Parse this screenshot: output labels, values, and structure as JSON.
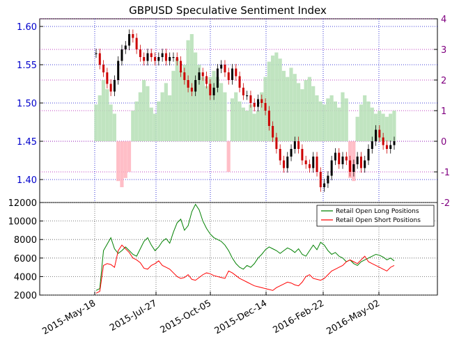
{
  "chart_data": [
    {
      "type": "candlestick+bar",
      "title": "GBPUSD Speculative Sentiment Index",
      "x_tick_labels": [
        "2015-May-18",
        "2015-Jul-27",
        "2015-Oct-05",
        "2015-Dec-14",
        "2016-Feb-22",
        "2016-May-02"
      ],
      "y_left": {
        "ticks": [
          "1.40",
          "1.45",
          "1.50",
          "1.55",
          "1.60"
        ],
        "ylim": [
          1.37,
          1.61
        ]
      },
      "y_right": {
        "ticks": [
          "-2",
          "-1",
          "0",
          "1",
          "2",
          "3",
          "4"
        ],
        "ylim": [
          -2,
          4
        ]
      },
      "grid": true,
      "price_ohlc_approx": [
        1.565,
        1.55,
        1.54,
        1.525,
        1.515,
        1.53,
        1.555,
        1.57,
        1.575,
        1.59,
        1.585,
        1.57,
        1.56,
        1.555,
        1.565,
        1.56,
        1.555,
        1.56,
        1.565,
        1.555,
        1.56,
        1.56,
        1.555,
        1.54,
        1.53,
        1.52,
        1.515,
        1.53,
        1.54,
        1.535,
        1.525,
        1.51,
        1.52,
        1.545,
        1.55,
        1.54,
        1.53,
        1.545,
        1.535,
        1.52,
        1.51,
        1.51,
        1.5,
        1.495,
        1.505,
        1.5,
        1.49,
        1.47,
        1.455,
        1.44,
        1.425,
        1.415,
        1.43,
        1.44,
        1.45,
        1.44,
        1.425,
        1.42,
        1.415,
        1.43,
        1.41,
        1.39,
        1.395,
        1.405,
        1.425,
        1.435,
        1.42,
        1.43,
        1.425,
        1.41,
        1.42,
        1.43,
        1.415,
        1.425,
        1.44,
        1.45,
        1.465,
        1.455,
        1.445,
        1.44,
        1.445,
        1.45
      ],
      "ssi_values_approx": [
        1.2,
        1.5,
        2.0,
        1.7,
        1.2,
        0.9,
        -1.3,
        -1.5,
        -1.2,
        -1.0,
        1.0,
        1.3,
        1.6,
        2.0,
        1.8,
        1.1,
        0.9,
        1.3,
        1.6,
        1.9,
        1.5,
        2.3,
        2.7,
        2.3,
        2.5,
        3.3,
        3.5,
        2.9,
        2.5,
        2.1,
        1.8,
        2.1,
        2.3,
        2.1,
        1.9,
        1.6,
        -1.0,
        1.4,
        1.6,
        1.3,
        1.1,
        1.0,
        1.2,
        0.9,
        1.0,
        1.6,
        2.1,
        2.6,
        2.8,
        2.9,
        2.7,
        2.3,
        2.1,
        2.4,
        2.2,
        1.9,
        1.7,
        2.0,
        2.1,
        1.8,
        1.5,
        1.3,
        1.2,
        1.4,
        1.5,
        1.3,
        1.1,
        1.6,
        1.4,
        -1.2,
        -1.3,
        0.8,
        1.2,
        1.5,
        1.3,
        1.1,
        0.9,
        1.0,
        0.9,
        0.8,
        0.9,
        1.0
      ]
    },
    {
      "type": "line",
      "x_tick_labels": [
        "2015-May-18",
        "2015-Jul-27",
        "2015-Oct-05",
        "2015-Dec-14",
        "2016-Feb-22",
        "2016-May-02"
      ],
      "y_ticks": [
        "2000",
        "4000",
        "6000",
        "8000",
        "10000",
        "12000"
      ],
      "ylim": [
        2000,
        12000
      ],
      "grid": true,
      "legend_placement": "top-right",
      "series": [
        {
          "name": "Retail Open Long Positions",
          "color": "#008000",
          "values": [
            2500,
            2700,
            6800,
            7500,
            8200,
            7000,
            6500,
            6800,
            7200,
            6800,
            6400,
            6200,
            7000,
            7800,
            8200,
            7400,
            6800,
            7200,
            7800,
            8100,
            7600,
            8800,
            9800,
            10200,
            9000,
            9500,
            11000,
            11800,
            11200,
            10000,
            9200,
            8600,
            8200,
            8000,
            7800,
            7400,
            6800,
            6000,
            5400,
            5000,
            4800,
            5200,
            5000,
            5400,
            6000,
            6400,
            6900,
            7200,
            7000,
            6800,
            6500,
            6800,
            7100,
            6900,
            6600,
            7000,
            6400,
            6200,
            6800,
            7400,
            6900,
            7700,
            7400,
            6800,
            6400,
            6600,
            6200,
            6000,
            5600,
            5800,
            5400,
            5200,
            5600,
            5800,
            6000,
            6200,
            6400,
            6300,
            6100,
            5800,
            6000,
            5700
          ]
        },
        {
          "name": "Retail Open Short Positions",
          "color": "#ff0000",
          "values": [
            2200,
            2400,
            5200,
            5400,
            5300,
            5000,
            6800,
            7400,
            7000,
            6600,
            6000,
            5800,
            5500,
            4900,
            4800,
            5200,
            5400,
            5700,
            5200,
            5000,
            4800,
            4400,
            4000,
            3800,
            3900,
            4200,
            3700,
            3600,
            3900,
            4200,
            4400,
            4300,
            4100,
            4000,
            3900,
            3800,
            4600,
            4400,
            4100,
            3800,
            3600,
            3400,
            3200,
            3000,
            2900,
            2800,
            2700,
            2600,
            2500,
            2800,
            3000,
            3200,
            3400,
            3300,
            3100,
            3000,
            3400,
            4000,
            4200,
            3800,
            3700,
            3600,
            3800,
            4200,
            4600,
            4800,
            5000,
            5200,
            5600,
            5800,
            5600,
            5400,
            5800,
            6200,
            5600,
            5400,
            5200,
            5000,
            4800,
            4600,
            5000,
            5200
          ]
        }
      ]
    }
  ]
}
